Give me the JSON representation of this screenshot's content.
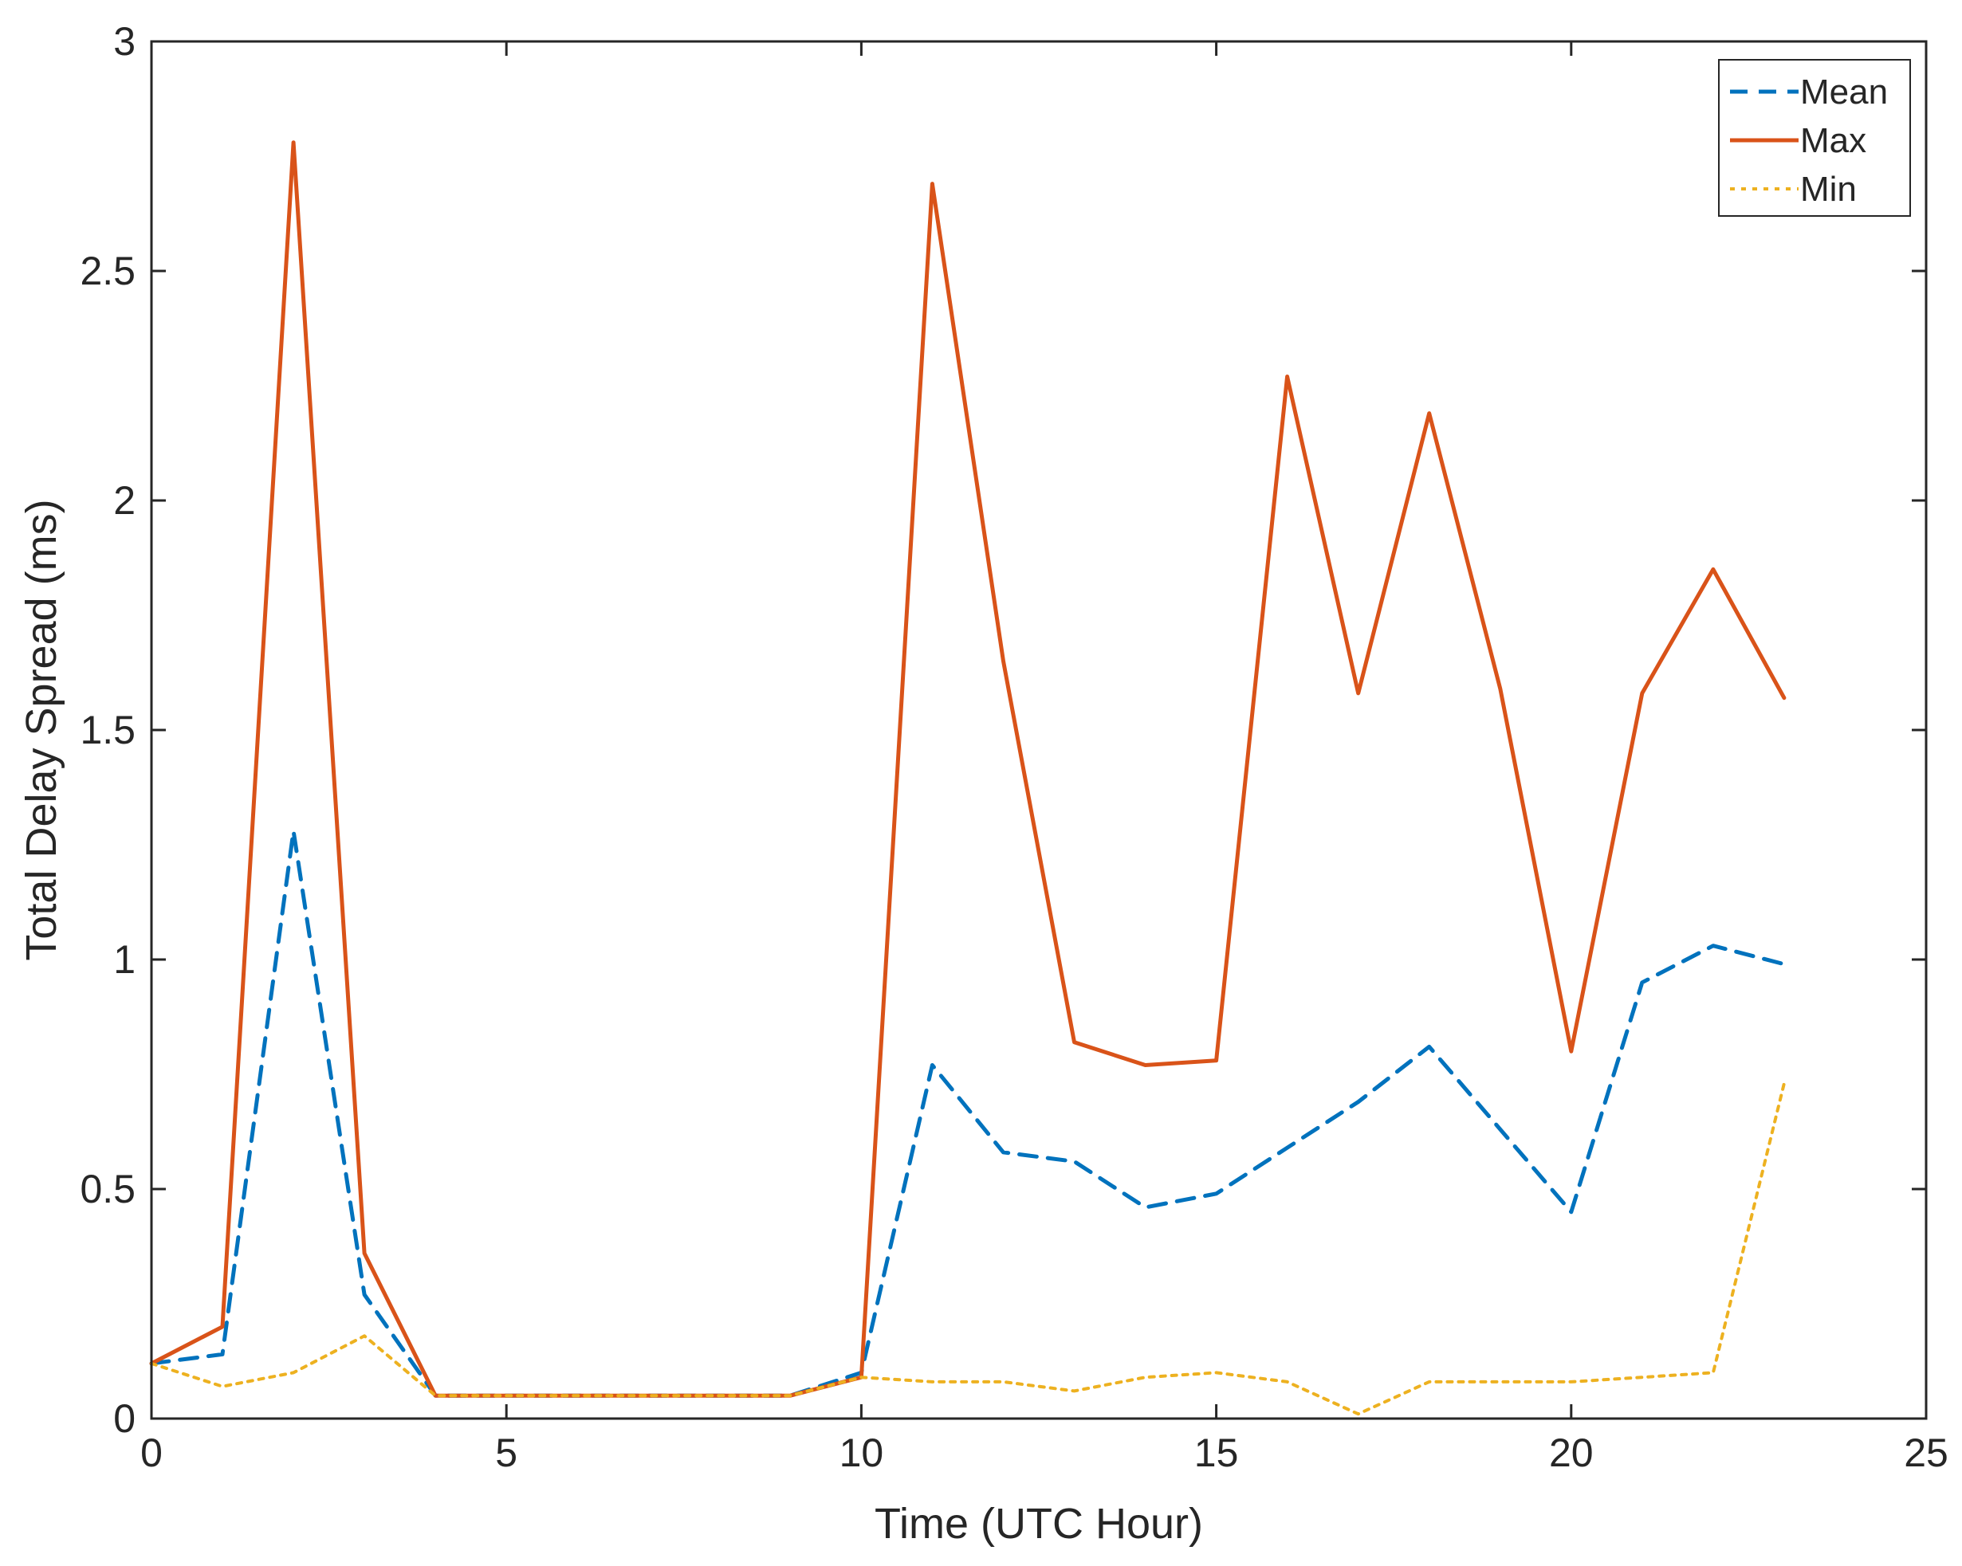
{
  "chart_data": {
    "type": "line",
    "title": "",
    "xlabel": "Time (UTC Hour)",
    "ylabel": "Total Delay Spread (ms)",
    "xlim": [
      0,
      25
    ],
    "ylim": [
      0,
      3
    ],
    "xticks": [
      0,
      5,
      10,
      15,
      20,
      25
    ],
    "yticks": [
      0,
      0.5,
      1,
      1.5,
      2,
      2.5,
      3
    ],
    "xtick_labels": [
      "0",
      "5",
      "10",
      "15",
      "20",
      "25"
    ],
    "ytick_labels": [
      "0",
      "0.5",
      "1",
      "1.5",
      "2",
      "2.5",
      "3"
    ],
    "grid": false,
    "legend_position": "top-right",
    "x": [
      0,
      1,
      2,
      3,
      4,
      5,
      6,
      7,
      8,
      9,
      10,
      11,
      12,
      13,
      14,
      15,
      16,
      17,
      18,
      19,
      20,
      21,
      22,
      23
    ],
    "series": [
      {
        "name": "Mean",
        "color": "#0072BD",
        "style": "dashed",
        "values": [
          0.12,
          0.14,
          1.28,
          0.27,
          0.05,
          0.05,
          0.05,
          0.05,
          0.05,
          0.05,
          0.1,
          0.77,
          0.58,
          0.56,
          0.46,
          0.49,
          0.59,
          0.69,
          0.81,
          0.63,
          0.45,
          0.95,
          1.03,
          0.99
        ]
      },
      {
        "name": "Max",
        "color": "#D95319",
        "style": "solid",
        "values": [
          0.12,
          0.2,
          2.78,
          0.36,
          0.05,
          0.05,
          0.05,
          0.05,
          0.05,
          0.05,
          0.09,
          2.69,
          1.65,
          0.82,
          0.77,
          0.78,
          2.27,
          1.58,
          2.19,
          1.59,
          0.8,
          1.58,
          1.85,
          1.57
        ]
      },
      {
        "name": "Min",
        "color": "#EDB120",
        "style": "dotted",
        "values": [
          0.12,
          0.07,
          0.1,
          0.18,
          0.05,
          0.05,
          0.05,
          0.05,
          0.05,
          0.05,
          0.09,
          0.08,
          0.08,
          0.06,
          0.09,
          0.1,
          0.08,
          0.01,
          0.08,
          0.08,
          0.08,
          0.09,
          0.1,
          0.73
        ]
      }
    ]
  }
}
